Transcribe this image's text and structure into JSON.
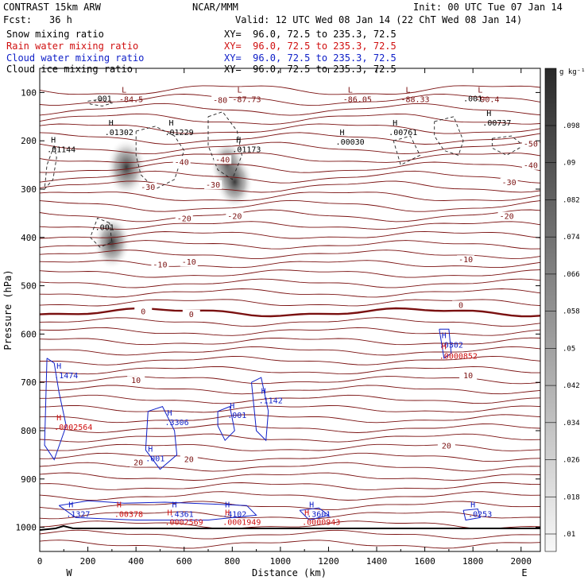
{
  "header": {
    "model": "CONTRAST 15km ARW",
    "org": "NCAR/MMM",
    "init": "Init: 00 UTC Tue 07 Jan 14",
    "fcst_label": "Fcst:",
    "fcst_value": "36 h",
    "valid": "Valid: 12 UTC Wed 08 Jan 14 (22 ChT Wed 08 Jan 14)",
    "fields": [
      {
        "label": "Snow mixing ratio",
        "xy": "XY=  96.0, 72.5 to 235.3, 72.5",
        "color": "#000000"
      },
      {
        "label": "Rain water mixing ratio",
        "xy": "XY=  96.0, 72.5 to 235.3, 72.5",
        "color": "#d01010"
      },
      {
        "label": "Cloud water mixing ratio",
        "xy": "XY=  96.0, 72.5 to 235.3, 72.5",
        "color": "#1020c8"
      },
      {
        "label": "Cloud ice mixing ratio",
        "xy": "XY=  96.0, 72.5 to 235.3, 72.5",
        "color": "#000000"
      }
    ]
  },
  "chart_data": {
    "type": "heatmap",
    "xlabel": "Distance (km)",
    "ylabel": "Pressure (hPa)",
    "xlim": [
      0,
      2080
    ],
    "ylim": [
      1050,
      50
    ],
    "x_ticks": [
      0,
      200,
      400,
      600,
      800,
      1000,
      1200,
      1400,
      1600,
      1800,
      2000
    ],
    "y_ticks": [
      100,
      200,
      300,
      400,
      500,
      600,
      700,
      800,
      900,
      1000
    ],
    "left_end_label": "W",
    "right_end_label": "E",
    "colorbar": {
      "units": "g kg⁻¹",
      "tick_labels": [
        ".098",
        ".09",
        ".082",
        ".074",
        ".066",
        ".058",
        ".05",
        ".042",
        ".034",
        ".026",
        ".018",
        ".01"
      ]
    },
    "temperature_contours": {
      "color": "#7a1010",
      "labels": [
        {
          "text": "-80",
          "x": 750,
          "p": 120
        },
        {
          "text": "-50",
          "x": 2040,
          "p": 210
        },
        {
          "text": "-40",
          "x": 590,
          "p": 248
        },
        {
          "text": "-40",
          "x": 760,
          "p": 243
        },
        {
          "text": "-40",
          "x": 2040,
          "p": 255
        },
        {
          "text": "-30",
          "x": 450,
          "p": 300
        },
        {
          "text": "-30",
          "x": 720,
          "p": 295
        },
        {
          "text": "-30",
          "x": 1950,
          "p": 290
        },
        {
          "text": "-20",
          "x": 600,
          "p": 365
        },
        {
          "text": "-20",
          "x": 810,
          "p": 360
        },
        {
          "text": "-20",
          "x": 1940,
          "p": 360
        },
        {
          "text": "-10",
          "x": 500,
          "p": 460
        },
        {
          "text": "-10",
          "x": 620,
          "p": 455
        },
        {
          "text": "-10",
          "x": 1770,
          "p": 450
        },
        {
          "text": "0",
          "x": 430,
          "p": 557
        },
        {
          "text": "0",
          "x": 630,
          "p": 563
        },
        {
          "text": "0",
          "x": 1750,
          "p": 544
        },
        {
          "text": "10",
          "x": 400,
          "p": 700
        },
        {
          "text": "10",
          "x": 1780,
          "p": 690
        },
        {
          "text": "20",
          "x": 410,
          "p": 870
        },
        {
          "text": "20",
          "x": 620,
          "p": 863
        },
        {
          "text": "20",
          "x": 1690,
          "p": 835
        }
      ]
    },
    "lows": [
      {
        "text": "-84.5",
        "x": 380,
        "p": 100
      },
      {
        "text": "-87.73",
        "x": 860,
        "p": 100
      },
      {
        "text": "-86.05",
        "x": 1320,
        "p": 100
      },
      {
        "text": "-88.33",
        "x": 1560,
        "p": 100
      },
      {
        "text": "-90.4",
        "x": 1860,
        "p": 100
      }
    ],
    "snow_labels": [
      {
        "text": ".001",
        "x": 220,
        "p": 118
      },
      {
        "text": ".001",
        "x": 1760,
        "p": 118
      },
      {
        "text": ".001",
        "x": 230,
        "p": 385
      }
    ],
    "ice_maxima": [
      {
        "text": ".01144",
        "x": 30,
        "p": 220
      },
      {
        "text": ".01302",
        "x": 270,
        "p": 185
      },
      {
        "text": ".01229",
        "x": 520,
        "p": 185
      },
      {
        "text": ".01173",
        "x": 800,
        "p": 220
      },
      {
        "text": ".00030",
        "x": 1230,
        "p": 205
      },
      {
        "text": ".00761",
        "x": 1450,
        "p": 185
      },
      {
        "text": ".00737",
        "x": 1840,
        "p": 165
      }
    ],
    "cloud_water_maxima": [
      {
        "text": ".1474",
        "x": 60,
        "p": 688
      },
      {
        "text": ".3306",
        "x": 520,
        "p": 785
      },
      {
        "text": ".001",
        "x": 440,
        "p": 860
      },
      {
        "text": ".001",
        "x": 780,
        "p": 770
      },
      {
        "text": ".1142",
        "x": 910,
        "p": 740
      },
      {
        "text": ".0302",
        "x": 1660,
        "p": 625
      },
      {
        "text": ".1327",
        "x": 110,
        "p": 975
      },
      {
        "text": ".4361",
        "x": 540,
        "p": 975
      },
      {
        "text": ".4102",
        "x": 760,
        "p": 975
      },
      {
        "text": ".3601",
        "x": 1110,
        "p": 975
      },
      {
        "text": ".0253",
        "x": 1780,
        "p": 975
      }
    ],
    "rain_maxima": [
      {
        "text": ".0000852",
        "x": 1660,
        "p": 648
      },
      {
        "text": ".0002564",
        "x": 60,
        "p": 795
      },
      {
        "text": ".00378",
        "x": 310,
        "p": 975
      },
      {
        "text": ".0002569",
        "x": 520,
        "p": 992
      },
      {
        "text": ".0001949",
        "x": 760,
        "p": 992
      },
      {
        "text": ".0000943",
        "x": 1090,
        "p": 992
      }
    ],
    "snow_shading_blobs": [
      {
        "x": 360,
        "p": 255,
        "value": 0.09
      },
      {
        "x": 300,
        "p": 410,
        "value": 0.08
      },
      {
        "x": 780,
        "p": 250,
        "value": 0.07
      },
      {
        "x": 810,
        "p": 285,
        "value": 0.08
      }
    ]
  }
}
